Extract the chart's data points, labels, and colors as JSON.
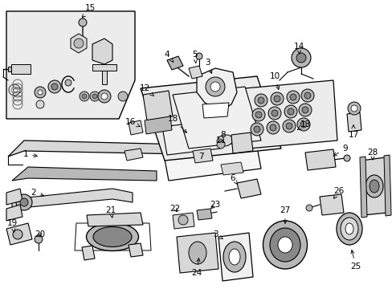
{
  "bg_color": "#ffffff",
  "fig_width": 4.89,
  "fig_height": 3.6,
  "dpi": 100,
  "line_color": "#000000",
  "text_color": "#000000",
  "label_fontsize": 7.5,
  "gray_light": "#d8d8d8",
  "gray_med": "#b8b8b8",
  "gray_dark": "#888888",
  "fill_light": "#f0f0f0",
  "fill_inset": "#ececec"
}
